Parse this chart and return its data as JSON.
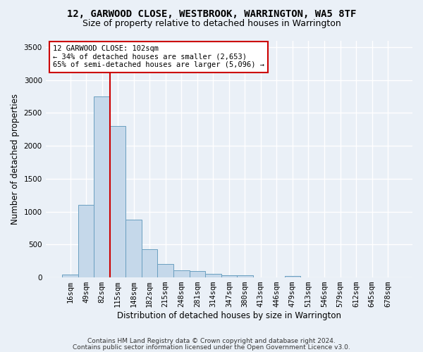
{
  "title": "12, GARWOOD CLOSE, WESTBROOK, WARRINGTON, WA5 8TF",
  "subtitle": "Size of property relative to detached houses in Warrington",
  "xlabel": "Distribution of detached houses by size in Warrington",
  "ylabel": "Number of detached properties",
  "categories": [
    "16sqm",
    "49sqm",
    "82sqm",
    "115sqm",
    "148sqm",
    "182sqm",
    "215sqm",
    "248sqm",
    "281sqm",
    "314sqm",
    "347sqm",
    "380sqm",
    "413sqm",
    "446sqm",
    "479sqm",
    "513sqm",
    "546sqm",
    "579sqm",
    "612sqm",
    "645sqm",
    "678sqm"
  ],
  "values": [
    40,
    1100,
    2750,
    2300,
    880,
    430,
    205,
    105,
    100,
    55,
    35,
    30,
    5,
    5,
    20,
    0,
    0,
    0,
    0,
    0,
    0
  ],
  "bar_color": "#c5d8ea",
  "bar_edge_color": "#6a9fc0",
  "property_line_color": "#cc0000",
  "annotation_text": "12 GARWOOD CLOSE: 102sqm\n← 34% of detached houses are smaller (2,653)\n65% of semi-detached houses are larger (5,096) →",
  "annotation_box_color": "#ffffff",
  "annotation_box_edge": "#cc0000",
  "ylim": [
    0,
    3600
  ],
  "yticks": [
    0,
    500,
    1000,
    1500,
    2000,
    2500,
    3000,
    3500
  ],
  "footnote1": "Contains HM Land Registry data © Crown copyright and database right 2024.",
  "footnote2": "Contains public sector information licensed under the Open Government Licence v3.0.",
  "bg_color": "#eaf0f7",
  "plot_bg_color": "#eaf0f7",
  "grid_color": "#ffffff",
  "title_fontsize": 10,
  "subtitle_fontsize": 9,
  "axis_label_fontsize": 8.5,
  "tick_fontsize": 7.5,
  "footnote_fontsize": 6.5
}
